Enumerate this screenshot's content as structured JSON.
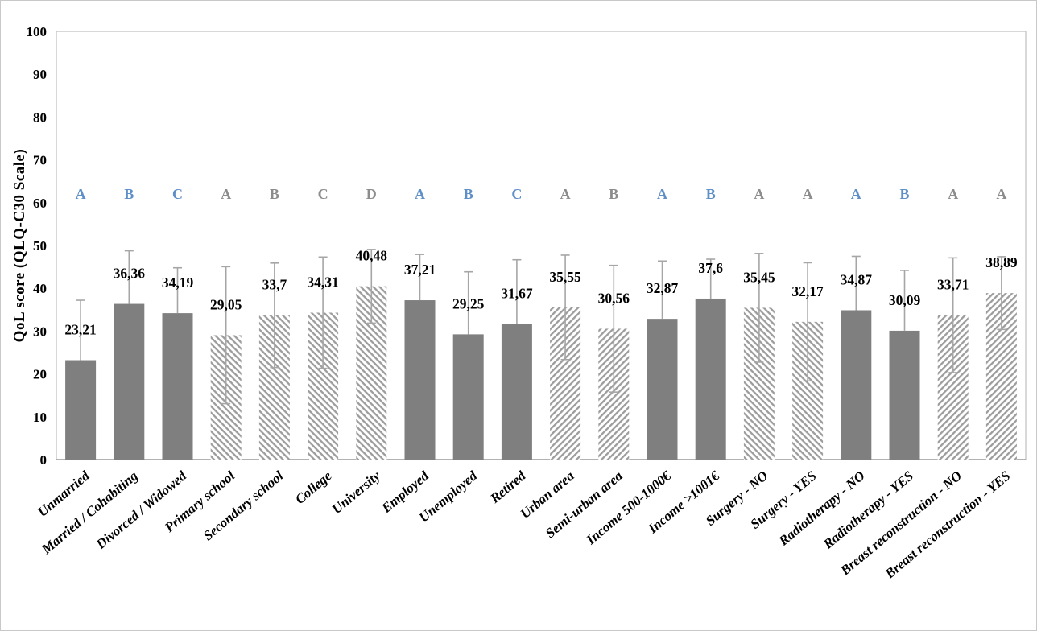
{
  "figure": {
    "background": "#ffffff",
    "border_color": "#c8c8c8"
  },
  "chart_data": {
    "type": "bar",
    "title": "",
    "xlabel": "",
    "ylabel": "QoL score (QLQ-C30  Scale)",
    "ylim": [
      0,
      100
    ],
    "ytick_step": 10,
    "grid": false,
    "legend": "none",
    "value_decimal_separator": ",",
    "colors": {
      "bar_solid": "#7f7f7f",
      "hatch_stripe": "#9c9c9c",
      "hatch_background": "#ffffff",
      "error_bar": "#a6a6a6",
      "letter_blue": "#5f8fc7",
      "letter_gray": "#8c8c8c",
      "plot_border": "#c4c4c4",
      "axis_line": "#9e9e9e",
      "text": "#000000"
    },
    "bars": [
      {
        "category": "Unmarried",
        "value": 23.21,
        "label": "23,21",
        "error": 14.0,
        "fill": "solid",
        "letter": "A",
        "letter_color": "blue"
      },
      {
        "category": "Married / Cohabiting",
        "value": 36.36,
        "label": "36,36",
        "error": 12.4,
        "fill": "solid",
        "letter": "B",
        "letter_color": "blue"
      },
      {
        "category": "Divorced / Widowed",
        "value": 34.19,
        "label": "34,19",
        "error": 10.6,
        "fill": "solid",
        "letter": "C",
        "letter_color": "blue"
      },
      {
        "category": "Primary school",
        "value": 29.05,
        "label": "29,05",
        "error": 16.0,
        "fill": "hatch-down",
        "letter": "A",
        "letter_color": "gray"
      },
      {
        "category": "Secondary school",
        "value": 33.7,
        "label": "33,7",
        "error": 12.2,
        "fill": "hatch-down",
        "letter": "B",
        "letter_color": "gray"
      },
      {
        "category": "College",
        "value": 34.31,
        "label": "34,31",
        "error": 13.0,
        "fill": "hatch-down",
        "letter": "C",
        "letter_color": "gray"
      },
      {
        "category": "University",
        "value": 40.48,
        "label": "40,48",
        "error": 8.6,
        "fill": "hatch-down",
        "letter": "D",
        "letter_color": "gray"
      },
      {
        "category": "Employed",
        "value": 37.21,
        "label": "37,21",
        "error": 10.7,
        "fill": "solid",
        "letter": "A",
        "letter_color": "blue"
      },
      {
        "category": "Unemployed",
        "value": 29.25,
        "label": "29,25",
        "error": 14.6,
        "fill": "solid",
        "letter": "B",
        "letter_color": "blue"
      },
      {
        "category": "Retired",
        "value": 31.67,
        "label": "31,67",
        "error": 15.0,
        "fill": "solid",
        "letter": "C",
        "letter_color": "blue"
      },
      {
        "category": "Urban area",
        "value": 35.55,
        "label": "35,55",
        "error": 12.2,
        "fill": "hatch-up",
        "letter": "A",
        "letter_color": "gray"
      },
      {
        "category": "Semi-urban area",
        "value": 30.56,
        "label": "30,56",
        "error": 14.8,
        "fill": "hatch-up",
        "letter": "B",
        "letter_color": "gray"
      },
      {
        "category": "Income 500-1000€",
        "value": 32.87,
        "label": "32,87",
        "error": 13.5,
        "fill": "solid",
        "letter": "A",
        "letter_color": "blue"
      },
      {
        "category": "Income >1001€",
        "value": 37.6,
        "label": "37,6",
        "error": 9.2,
        "fill": "solid",
        "letter": "B",
        "letter_color": "blue"
      },
      {
        "category": "Surgery - NO",
        "value": 35.45,
        "label": "35,45",
        "error": 12.7,
        "fill": "hatch-down",
        "letter": "A",
        "letter_color": "gray"
      },
      {
        "category": "Surgery - YES",
        "value": 32.17,
        "label": "32,17",
        "error": 13.8,
        "fill": "hatch-down",
        "letter": "A",
        "letter_color": "gray"
      },
      {
        "category": "Radiotherapy - NO",
        "value": 34.87,
        "label": "34,87",
        "error": 12.6,
        "fill": "solid",
        "letter": "A",
        "letter_color": "blue"
      },
      {
        "category": "Radiotherapy - YES",
        "value": 30.09,
        "label": "30,09",
        "error": 14.1,
        "fill": "solid",
        "letter": "B",
        "letter_color": "blue"
      },
      {
        "category": "Breast reconstruction - NO",
        "value": 33.71,
        "label": "33,71",
        "error": 13.4,
        "fill": "hatch-up",
        "letter": "A",
        "letter_color": "gray"
      },
      {
        "category": "Breast reconstruction - YES",
        "value": 38.89,
        "label": "38,89",
        "error": 8.5,
        "fill": "hatch-up",
        "letter": "A",
        "letter_color": "gray"
      }
    ]
  }
}
